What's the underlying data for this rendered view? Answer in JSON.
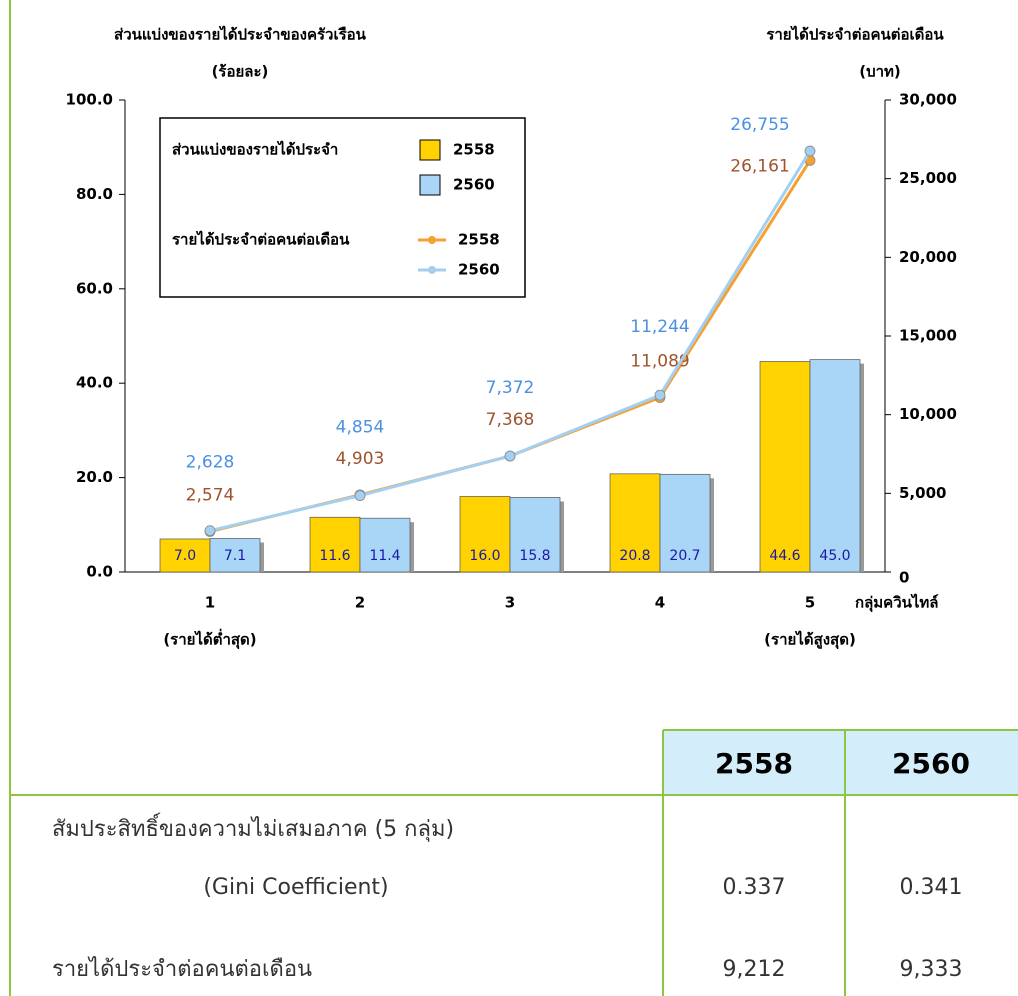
{
  "chart_data": {
    "type": "bar_line",
    "y_title": [
      "ส่วนแบ่งของรายได้ประจำของครัวเรือน",
      "(ร้อยละ)"
    ],
    "y2_title": [
      "รายได้ประจำต่อคนต่อเดือน",
      "(บาท)"
    ],
    "x_title": "กลุ่มควินไทล์",
    "categories": [
      "1",
      "2",
      "3",
      "4",
      "5"
    ],
    "category_notes": [
      "(รายได้ต่ำสุด)",
      null,
      null,
      null,
      "(รายได้สูงสุด)"
    ],
    "ylim": [
      0,
      100
    ],
    "yticks": [
      {
        "value": 0,
        "label": "0.0"
      },
      {
        "value": 20,
        "label": "20.0"
      },
      {
        "value": 40,
        "label": "40.0"
      },
      {
        "value": 60,
        "label": "60.0"
      },
      {
        "value": 80,
        "label": "80.0"
      },
      {
        "value": 100,
        "label": "100.0"
      }
    ],
    "y2lim": [
      0,
      30000
    ],
    "y2ticks": [
      0,
      {
        "value": 5000,
        "label": "5,000"
      },
      {
        "value": 10000,
        "label": "10,000"
      },
      {
        "value": 15000,
        "label": "15,000"
      },
      {
        "value": 20000,
        "label": "20,000"
      },
      {
        "value": 25000,
        "label": "25,000"
      },
      {
        "value": 30000,
        "label": "30,000"
      }
    ],
    "legend_groups": {
      "bar": "ส่วนแบ่งของรายได้ประจำ",
      "line": "รายได้ประจำต่อคนต่อเดือน"
    },
    "legend_position": "upper left",
    "series": [
      {
        "name": "2558",
        "type": "bar",
        "color": "#ffd200",
        "values": [
          7.0,
          11.6,
          16.0,
          20.8,
          44.6
        ],
        "value_labels": [
          "7.0",
          "11.6",
          "16.0",
          "20.8",
          "44.6"
        ]
      },
      {
        "name": "2560",
        "type": "bar",
        "color": "#a9d5f7",
        "values": [
          7.1,
          11.4,
          15.8,
          20.7,
          45.0
        ],
        "value_labels": [
          "7.1",
          "11.4",
          "15.8",
          "20.7",
          "45.0"
        ]
      },
      {
        "name": "2558",
        "type": "line",
        "axis": "y2",
        "color": "#f5a030",
        "label_color": "#a0522d",
        "values": [
          2574,
          4903,
          7368,
          11089,
          26161
        ],
        "value_labels": [
          "2,574",
          "4,903",
          "7,368",
          "11,089",
          "26,161"
        ]
      },
      {
        "name": "2560",
        "type": "line",
        "axis": "y2",
        "color": "#a3cff2",
        "label_color": "#4a90e2",
        "values": [
          2628,
          4854,
          7372,
          11244,
          26755
        ],
        "value_labels": [
          "2,628",
          "4,854",
          "7,372",
          "11,244",
          "26,755"
        ]
      }
    ]
  },
  "table": {
    "header": [
      "2558",
      "2560"
    ],
    "rows": [
      {
        "label": [
          "สัมประสิทธิ์ของความไม่เสมอภาค (5 กลุ่ม)",
          "(Gini Coefficient)"
        ],
        "values": [
          "0.337",
          "0.341"
        ]
      },
      {
        "label": [
          "รายได้ประจำต่อคนต่อเดือน"
        ],
        "values": [
          "9,212",
          "9,333"
        ]
      }
    ]
  }
}
